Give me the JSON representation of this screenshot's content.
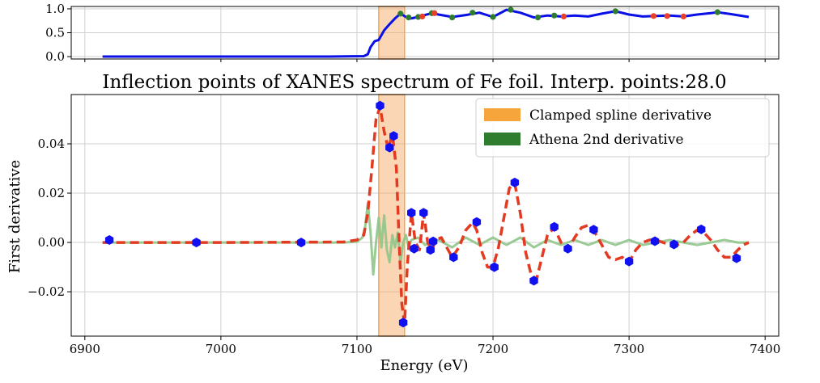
{
  "chart_data": [
    {
      "type": "line",
      "panel": "top",
      "title": "",
      "xlabel": "",
      "ylabel": "",
      "xlim": [
        6890,
        7410
      ],
      "ylim": [
        -0.05,
        1.05
      ],
      "yticks": [
        0.0,
        0.5,
        1.0
      ],
      "ytick_labels": [
        "0.0",
        "0.5",
        "1.0"
      ],
      "grid": true,
      "shaded_region": [
        7116,
        7135
      ],
      "shaded_color": "#f5a55a",
      "series": [
        {
          "color": "#0a10e6",
          "x": [
            6913,
            7080,
            7105,
            7108,
            7110,
            7113,
            7116,
            7120,
            7124,
            7128,
            7132,
            7136,
            7140,
            7145,
            7150,
            7155,
            7160,
            7170,
            7180,
            7190,
            7200,
            7210,
            7220,
            7230,
            7240,
            7250,
            7260,
            7270,
            7280,
            7290,
            7300,
            7310,
            7320,
            7330,
            7340,
            7350,
            7360,
            7365,
            7375,
            7388
          ],
          "y": [
            0.0,
            0.0,
            0.01,
            0.05,
            0.2,
            0.32,
            0.35,
            0.55,
            0.68,
            0.8,
            0.9,
            0.83,
            0.8,
            0.83,
            0.87,
            0.91,
            0.88,
            0.83,
            0.87,
            0.92,
            0.83,
            0.98,
            0.92,
            0.82,
            0.86,
            0.84,
            0.86,
            0.84,
            0.9,
            0.95,
            0.88,
            0.84,
            0.85,
            0.86,
            0.84,
            0.88,
            0.91,
            0.93,
            0.89,
            0.83
          ]
        }
      ],
      "markers_green": {
        "color": "#2e7d2e",
        "x": [
          7132,
          7138,
          7145,
          7155,
          7170,
          7185,
          7200,
          7213,
          7233,
          7245,
          7290,
          7365
        ],
        "y": [
          0.9,
          0.82,
          0.83,
          0.91,
          0.82,
          0.92,
          0.83,
          0.98,
          0.82,
          0.86,
          0.95,
          0.93
        ]
      },
      "markers_red": {
        "color": "#e8402a",
        "x": [
          7148,
          7157,
          7252,
          7318,
          7328,
          7340
        ],
        "y": [
          0.84,
          0.91,
          0.84,
          0.85,
          0.85,
          0.84
        ]
      }
    },
    {
      "type": "line",
      "panel": "main",
      "title": "Inflection points of XANES spectrum of Fe foil. Interp. points:28.0",
      "xlabel": "Energy (eV)",
      "ylabel": "First derivative",
      "xlim": [
        6890,
        7410
      ],
      "ylim": [
        -0.038,
        0.06
      ],
      "xticks": [
        6900,
        7000,
        7100,
        7200,
        7300,
        7400
      ],
      "xtick_labels": [
        "6900",
        "7000",
        "7100",
        "7200",
        "7300",
        "7400"
      ],
      "yticks": [
        -0.02,
        0.0,
        0.02,
        0.04
      ],
      "ytick_labels": [
        "−0.02",
        "0.00",
        "0.02",
        "0.04"
      ],
      "grid": true,
      "legend_position": "top-right",
      "legend": [
        {
          "label": "Clamped spline derivative",
          "color": "#f5a53c"
        },
        {
          "label": "Athena 2nd derivative",
          "color": "#2e7d2e"
        }
      ],
      "shaded_region": [
        7116,
        7135
      ],
      "shaded_color": "#f5a55a",
      "series": [
        {
          "style": "dashed",
          "color": "#e23b22",
          "x": [
            6913,
            7000,
            7090,
            7100,
            7105,
            7108,
            7111,
            7114,
            7117,
            7120,
            7123,
            7126,
            7129,
            7131,
            7133,
            7135,
            7137,
            7140,
            7143,
            7146,
            7149,
            7152,
            7155,
            7158,
            7162,
            7166,
            7170,
            7175,
            7180,
            7185,
            7188,
            7192,
            7196,
            7200,
            7204,
            7208,
            7212,
            7216,
            7220,
            7224,
            7228,
            7232,
            7236,
            7240,
            7245,
            7250,
            7255,
            7260,
            7265,
            7270,
            7275,
            7280,
            7285,
            7290,
            7295,
            7300,
            7305,
            7310,
            7315,
            7320,
            7325,
            7330,
            7335,
            7340,
            7345,
            7350,
            7355,
            7360,
            7365,
            7370,
            7375,
            7380,
            7384,
            7388
          ],
          "y": [
            0.0,
            0.0,
            0.0002,
            0.001,
            0.003,
            0.012,
            0.03,
            0.05,
            0.055,
            0.045,
            0.038,
            0.044,
            0.03,
            0.0,
            -0.025,
            -0.033,
            -0.01,
            0.012,
            0.0,
            -0.003,
            0.012,
            0.0,
            -0.003,
            0.001,
            0.002,
            -0.002,
            -0.006,
            -0.002,
            0.005,
            0.008,
            0.005,
            -0.004,
            -0.01,
            -0.01,
            -0.002,
            0.01,
            0.022,
            0.024,
            0.012,
            -0.004,
            -0.013,
            -0.015,
            -0.006,
            0.003,
            0.006,
            0.0,
            -0.003,
            0.002,
            0.006,
            0.007,
            0.004,
            -0.001,
            -0.006,
            -0.007,
            -0.006,
            -0.008,
            -0.003,
            0.0,
            0.001,
            0.001,
            0.0,
            -0.001,
            -0.001,
            0.0,
            0.003,
            0.005,
            0.004,
            0.001,
            -0.003,
            -0.006,
            -0.006,
            -0.003,
            -0.001,
            0.0
          ]
        },
        {
          "style": "solid",
          "color": "#8fc58a",
          "x": [
            6913,
            7000,
            7090,
            7100,
            7104,
            7106,
            7108,
            7110,
            7112,
            7114,
            7116,
            7118,
            7120,
            7122,
            7124,
            7126,
            7128,
            7130,
            7132,
            7134,
            7136,
            7138,
            7140,
            7145,
            7150,
            7160,
            7170,
            7180,
            7190,
            7200,
            7210,
            7220,
            7230,
            7240,
            7250,
            7260,
            7270,
            7280,
            7290,
            7300,
            7310,
            7320,
            7330,
            7340,
            7350,
            7360,
            7370,
            7380,
            7388
          ],
          "y": [
            0.0,
            0.0,
            0.0,
            0.0003,
            0.002,
            0.006,
            0.016,
            0.004,
            -0.013,
            0.0,
            0.01,
            -0.002,
            0.011,
            -0.003,
            -0.008,
            0.003,
            -0.002,
            0.004,
            -0.008,
            0.0,
            0.003,
            -0.002,
            0.001,
            0.002,
            -0.001,
            0.001,
            -0.002,
            0.002,
            -0.001,
            0.002,
            -0.001,
            0.002,
            -0.002,
            0.001,
            -0.001,
            0.001,
            -0.001,
            0.001,
            -0.001,
            0.001,
            -0.001,
            0.0,
            0.001,
            0.0,
            -0.001,
            0.0,
            0.001,
            0.0,
            0.0
          ]
        }
      ],
      "inflection_points": {
        "color": "#1010f0",
        "x": [
          6918,
          6982,
          7059,
          7134,
          7117,
          7124,
          7127,
          7140,
          7142,
          7149,
          7154,
          7156,
          7171,
          7188,
          7201,
          7216,
          7230,
          7245,
          7255,
          7274,
          7300,
          7319,
          7333,
          7353,
          7379
        ],
        "y": [
          0.001,
          0.0,
          0.0,
          -0.0325,
          0.0555,
          0.0385,
          0.0432,
          0.012,
          -0.0025,
          0.012,
          -0.003,
          0.0004,
          -0.006,
          0.0083,
          -0.01,
          0.0243,
          -0.0155,
          0.0063,
          -0.0025,
          0.0052,
          -0.0077,
          0.0005,
          -0.0008,
          0.0053,
          -0.0064
        ]
      }
    }
  ]
}
